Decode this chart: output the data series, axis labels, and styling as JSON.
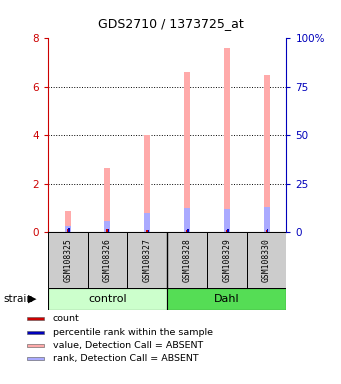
{
  "title": "GDS2710 / 1373725_at",
  "samples": [
    "GSM108325",
    "GSM108326",
    "GSM108327",
    "GSM108328",
    "GSM108329",
    "GSM108330"
  ],
  "ylim_left": [
    0,
    8
  ],
  "ylim_right": [
    0,
    100
  ],
  "yticks_left": [
    0,
    2,
    4,
    6,
    8
  ],
  "yticks_right": [
    0,
    25,
    50,
    75,
    100
  ],
  "ytick_labels_right": [
    "0",
    "25",
    "50",
    "75",
    "100%"
  ],
  "value_absent": [
    0.9,
    2.65,
    4.0,
    6.6,
    7.6,
    6.5
  ],
  "rank_absent": [
    0.25,
    0.45,
    0.8,
    1.0,
    0.95,
    1.05
  ],
  "count_val": [
    0.15,
    0.12,
    0.08,
    0.1,
    0.1,
    0.1
  ],
  "percentile_val": [
    0.18,
    0.15,
    0.1,
    0.12,
    0.12,
    0.12
  ],
  "color_value_absent": "#ffaaaa",
  "color_rank_absent": "#aaaaff",
  "color_count": "#cc0000",
  "color_percentile": "#0000bb",
  "bar_width": 0.15,
  "bg_color": "#ffffff",
  "plot_bg": "#ffffff",
  "axis_color_left": "#cc0000",
  "axis_color_right": "#0000bb",
  "control_color": "#ccffcc",
  "dahl_color": "#55dd55",
  "sample_box_color": "#cccccc",
  "grid_yticks": [
    2,
    4,
    6
  ]
}
